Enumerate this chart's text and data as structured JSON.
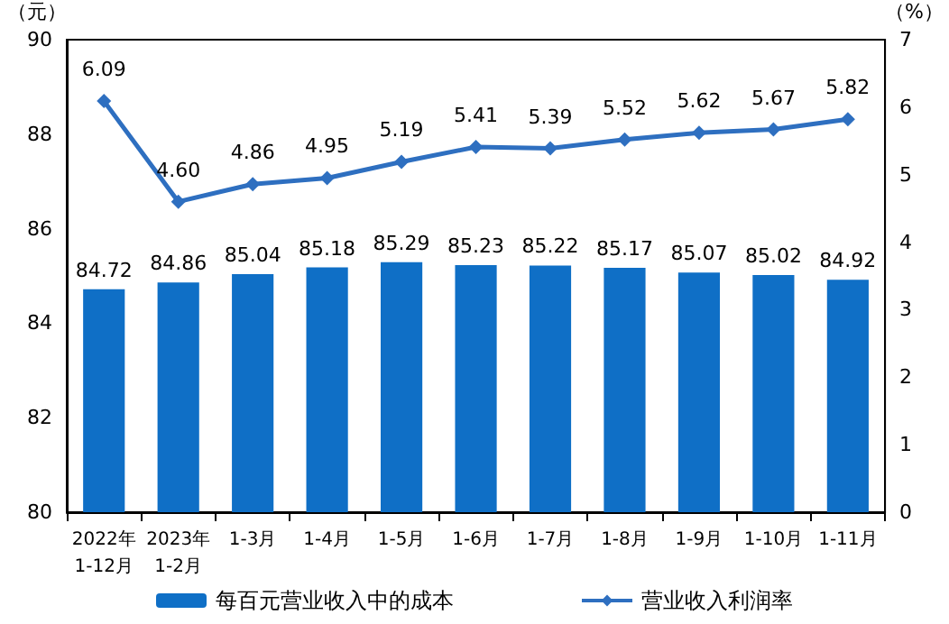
{
  "chart_data": {
    "type": "bar",
    "ylabel": "（元）",
    "y2label": "（%）",
    "categories": [
      "2022年\n1-12月",
      "2023年\n1-2月",
      "1-3月",
      "1-4月",
      "1-5月",
      "1-6月",
      "1-7月",
      "1-8月",
      "1-9月",
      "1-10月",
      "1-11月"
    ],
    "series": [
      {
        "name": "每百元营业收入中的成本",
        "color": "#0f6fc6",
        "values": [
          84.72,
          84.86,
          85.04,
          85.18,
          85.29,
          85.23,
          85.22,
          85.17,
          85.07,
          85.02,
          84.92
        ]
      },
      {
        "name": "营业收入利润率",
        "type": "line",
        "axis": "y2",
        "color": "#2e6fc0",
        "marker": "diamond",
        "values": [
          6.09,
          4.6,
          4.86,
          4.95,
          5.19,
          5.41,
          5.39,
          5.52,
          5.62,
          5.67,
          5.82
        ],
        "value_labels": [
          "6.09",
          "4.60",
          "4.86",
          "4.95",
          "5.19",
          "5.41",
          "5.39",
          "5.52",
          "5.62",
          "5.67",
          "5.82"
        ]
      }
    ],
    "ylim": [
      80,
      90
    ],
    "yticks": [
      80,
      82,
      84,
      86,
      88,
      90
    ],
    "y2lim": [
      0,
      7
    ],
    "y2ticks": [
      0,
      1,
      2,
      3,
      4,
      5,
      6,
      7
    ],
    "data_labels": true,
    "grid": false,
    "legend": "bottom"
  }
}
